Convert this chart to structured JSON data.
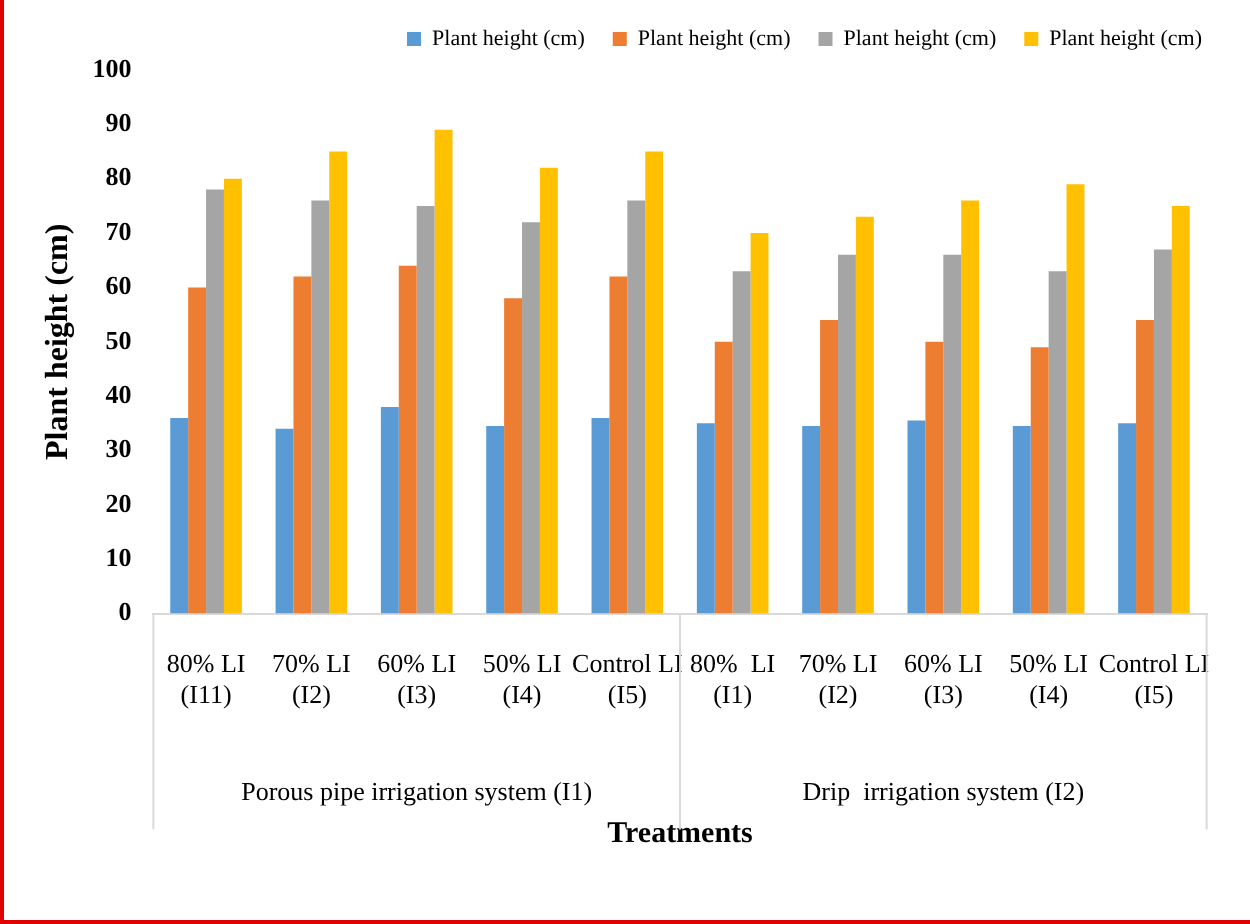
{
  "chart_data": {
    "type": "bar",
    "xlabel": "Treatments",
    "ylabel": "Plant height (cm)",
    "categories": [
      "80% LI (I11)",
      "70% LI (I2)",
      "60% LI (I3)",
      "50% LI (I4)",
      "Control LI (I5)",
      "80%  LI (I1)",
      "70% LI (I2)",
      "60% LI (I3)",
      "50% LI (I4)",
      "Control LI (I5)"
    ],
    "series": [
      {
        "name": "Plant height (cm)",
        "color": "#5b9bd5",
        "values": [
          36,
          34,
          38,
          34.5,
          36,
          35,
          34.5,
          35.5,
          34.5,
          35
        ]
      },
      {
        "name": "Plant height (cm)",
        "color": "#ed7d31",
        "values": [
          60,
          62,
          64,
          58,
          62,
          50,
          54,
          50,
          49,
          54
        ]
      },
      {
        "name": "Plant height (cm)",
        "color": "#a5a5a5",
        "values": [
          78,
          76,
          75,
          72,
          76,
          63,
          66,
          66,
          63,
          67
        ]
      },
      {
        "name": "Plant height (cm)",
        "color": "#ffc000",
        "values": [
          80,
          85,
          89,
          82,
          85,
          70,
          73,
          76,
          79,
          75
        ]
      }
    ],
    "annotations": [
      "Porous pipe irrigation system (I1)",
      "Drip  irrigation system (I2)"
    ],
    "ylim": [
      0,
      100
    ],
    "yticks": [
      0,
      10,
      20,
      30,
      40,
      50,
      60,
      70,
      80,
      90,
      100
    ],
    "grid": false,
    "legend": "top right"
  }
}
